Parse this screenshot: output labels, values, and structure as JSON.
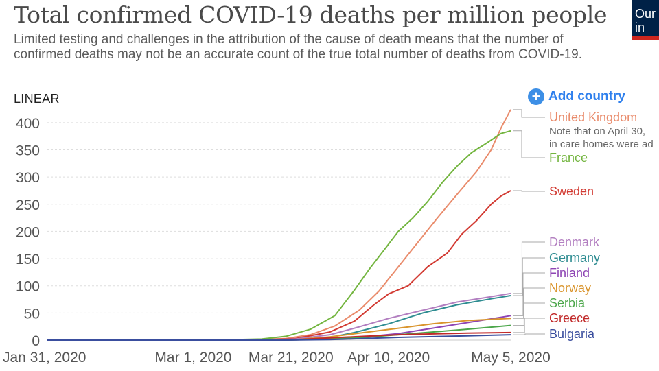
{
  "header": {
    "title": "Total confirmed COVID-19 deaths per million people",
    "subtitle": "Limited testing and challenges in the attribution of the cause of death means that the number of confirmed deaths may not be an accurate count of the true total number of deaths from COVID-19.",
    "logo_line1": "Our",
    "logo_line2": "in"
  },
  "controls": {
    "scale_label": "LINEAR",
    "add_country_label": "Add country",
    "add_icon": "plus-circle-icon"
  },
  "colors": {
    "United Kingdom": "#e98b6b",
    "France": "#73b53f",
    "Sweden": "#d23a32",
    "Denmark": "#b27ec0",
    "Germany": "#2e8c91",
    "Finland": "#8e45b4",
    "Norway": "#d9942c",
    "Serbia": "#4ba64a",
    "Greece": "#c12a2a",
    "Bulgaria": "#3a4e9e"
  },
  "chart_data": {
    "type": "line",
    "x_type": "date",
    "x_ticks": [
      "Jan 31, 2020",
      "Mar 1, 2020",
      "Mar 21, 2020",
      "Apr 10, 2020",
      "May 5, 2020"
    ],
    "x_tick_dates": [
      "2020-01-31",
      "2020-03-01",
      "2020-03-21",
      "2020-04-10",
      "2020-05-05"
    ],
    "xlim": [
      "2020-01-31",
      "2020-05-05"
    ],
    "ylim": [
      0,
      420
    ],
    "y_ticks": [
      0,
      50,
      100,
      150,
      200,
      250,
      300,
      350,
      400
    ],
    "grid": "horizontal-dashed",
    "legend": "right-inline",
    "note": "Note that on April 30,",
    "note_line2": "in care homes were ad",
    "series": [
      {
        "name": "United Kingdom",
        "points": [
          [
            "2020-01-31",
            0
          ],
          [
            "2020-03-10",
            0
          ],
          [
            "2020-03-20",
            3
          ],
          [
            "2020-03-25",
            10
          ],
          [
            "2020-03-30",
            26
          ],
          [
            "2020-04-04",
            55
          ],
          [
            "2020-04-08",
            90
          ],
          [
            "2020-04-12",
            135
          ],
          [
            "2020-04-16",
            180
          ],
          [
            "2020-04-20",
            225
          ],
          [
            "2020-04-24",
            268
          ],
          [
            "2020-04-28",
            310
          ],
          [
            "2020-05-01",
            350
          ],
          [
            "2020-05-03",
            390
          ],
          [
            "2020-05-05",
            424
          ]
        ]
      },
      {
        "name": "France",
        "points": [
          [
            "2020-01-31",
            0
          ],
          [
            "2020-03-05",
            0
          ],
          [
            "2020-03-15",
            2
          ],
          [
            "2020-03-20",
            7
          ],
          [
            "2020-03-25",
            20
          ],
          [
            "2020-03-30",
            45
          ],
          [
            "2020-04-03",
            92
          ],
          [
            "2020-04-06",
            130
          ],
          [
            "2020-04-09",
            165
          ],
          [
            "2020-04-12",
            200
          ],
          [
            "2020-04-15",
            225
          ],
          [
            "2020-04-18",
            255
          ],
          [
            "2020-04-21",
            290
          ],
          [
            "2020-04-24",
            320
          ],
          [
            "2020-04-27",
            345
          ],
          [
            "2020-04-30",
            362
          ],
          [
            "2020-05-03",
            380
          ],
          [
            "2020-05-05",
            385
          ]
        ]
      },
      {
        "name": "Sweden",
        "points": [
          [
            "2020-01-31",
            0
          ],
          [
            "2020-03-15",
            0
          ],
          [
            "2020-03-22",
            3
          ],
          [
            "2020-03-29",
            15
          ],
          [
            "2020-04-03",
            35
          ],
          [
            "2020-04-07",
            65
          ],
          [
            "2020-04-10",
            85
          ],
          [
            "2020-04-14",
            100
          ],
          [
            "2020-04-18",
            135
          ],
          [
            "2020-04-22",
            160
          ],
          [
            "2020-04-25",
            195
          ],
          [
            "2020-04-28",
            220
          ],
          [
            "2020-05-01",
            250
          ],
          [
            "2020-05-03",
            265
          ],
          [
            "2020-05-05",
            275
          ]
        ]
      },
      {
        "name": "Denmark",
        "points": [
          [
            "2020-01-31",
            0
          ],
          [
            "2020-03-15",
            0
          ],
          [
            "2020-03-22",
            2
          ],
          [
            "2020-03-29",
            10
          ],
          [
            "2020-04-03",
            22
          ],
          [
            "2020-04-10",
            40
          ],
          [
            "2020-04-17",
            55
          ],
          [
            "2020-04-24",
            70
          ],
          [
            "2020-05-01",
            80
          ],
          [
            "2020-05-05",
            86
          ]
        ]
      },
      {
        "name": "Germany",
        "points": [
          [
            "2020-01-31",
            0
          ],
          [
            "2020-03-15",
            0
          ],
          [
            "2020-03-22",
            1
          ],
          [
            "2020-03-29",
            5
          ],
          [
            "2020-04-03",
            14
          ],
          [
            "2020-04-10",
            30
          ],
          [
            "2020-04-17",
            50
          ],
          [
            "2020-04-24",
            65
          ],
          [
            "2020-05-01",
            76
          ],
          [
            "2020-05-05",
            82
          ]
        ]
      },
      {
        "name": "Finland",
        "points": [
          [
            "2020-01-31",
            0
          ],
          [
            "2020-03-20",
            0
          ],
          [
            "2020-03-29",
            2
          ],
          [
            "2020-04-05",
            6
          ],
          [
            "2020-04-12",
            12
          ],
          [
            "2020-04-19",
            22
          ],
          [
            "2020-04-26",
            32
          ],
          [
            "2020-05-05",
            45
          ]
        ]
      },
      {
        "name": "Norway",
        "points": [
          [
            "2020-01-31",
            0
          ],
          [
            "2020-03-15",
            0
          ],
          [
            "2020-03-22",
            1
          ],
          [
            "2020-03-29",
            6
          ],
          [
            "2020-04-05",
            14
          ],
          [
            "2020-04-12",
            22
          ],
          [
            "2020-04-19",
            30
          ],
          [
            "2020-04-26",
            36
          ],
          [
            "2020-05-05",
            40
          ]
        ]
      },
      {
        "name": "Serbia",
        "points": [
          [
            "2020-01-31",
            0
          ],
          [
            "2020-03-20",
            0
          ],
          [
            "2020-03-29",
            2
          ],
          [
            "2020-04-05",
            5
          ],
          [
            "2020-04-12",
            10
          ],
          [
            "2020-04-19",
            15
          ],
          [
            "2020-04-26",
            20
          ],
          [
            "2020-05-05",
            27
          ]
        ]
      },
      {
        "name": "Greece",
        "points": [
          [
            "2020-01-31",
            0
          ],
          [
            "2020-03-15",
            0
          ],
          [
            "2020-03-22",
            1
          ],
          [
            "2020-03-29",
            4
          ],
          [
            "2020-04-05",
            7
          ],
          [
            "2020-04-12",
            10
          ],
          [
            "2020-04-26",
            13
          ],
          [
            "2020-05-05",
            14
          ]
        ]
      },
      {
        "name": "Bulgaria",
        "points": [
          [
            "2020-01-31",
            0
          ],
          [
            "2020-03-20",
            0
          ],
          [
            "2020-03-29",
            1
          ],
          [
            "2020-04-05",
            3
          ],
          [
            "2020-04-12",
            5
          ],
          [
            "2020-04-26",
            8
          ],
          [
            "2020-05-05",
            10
          ]
        ]
      }
    ]
  }
}
